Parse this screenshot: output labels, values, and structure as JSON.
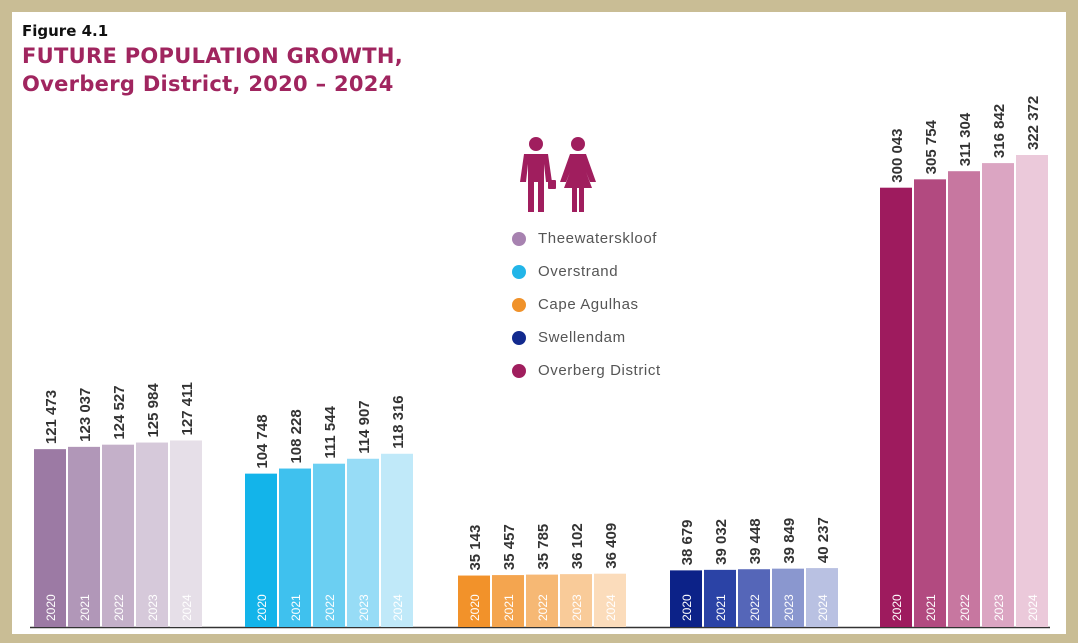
{
  "figure_label": "Figure 4.1",
  "title": "FUTURE POPULATION GROWTH,",
  "subtitle": "Overberg District, 2020 – 2024",
  "legend": [
    {
      "label": "Theewaterskloof",
      "color": "#a782b0"
    },
    {
      "label": "Overstrand",
      "color": "#22b5e8"
    },
    {
      "label": "Cape Agulhas",
      "color": "#f0922a"
    },
    {
      "label": "Swellendam",
      "color": "#122a8e"
    },
    {
      "label": "Overberg District",
      "color": "#a01e5e"
    }
  ],
  "icon": "man-and-woman-icon",
  "chart_data": {
    "type": "bar",
    "categories": [
      "2020",
      "2021",
      "2022",
      "2023",
      "2024"
    ],
    "title": "FUTURE POPULATION GROWTH,",
    "subtitle": "Overberg District, 2020 – 2024",
    "series": [
      {
        "name": "Theewaterskloof",
        "values": [
          121473,
          123037,
          124527,
          125984,
          127411
        ],
        "labels": [
          "121 473",
          "123 037",
          "124 527",
          "125 984",
          "127 411"
        ],
        "colors": [
          "#9c7aa4",
          "#b197b8",
          "#c4b0c9",
          "#d6c9da",
          "#e6dfe8"
        ]
      },
      {
        "name": "Overstrand",
        "values": [
          104748,
          108228,
          111544,
          114907,
          118316
        ],
        "labels": [
          "104 748",
          "108 228",
          "111 544",
          "114 907",
          "118 316"
        ],
        "colors": [
          "#13b4ea",
          "#3fc1ee",
          "#6bcff2",
          "#97dcf6",
          "#c0e9f9"
        ]
      },
      {
        "name": "Cape Agulhas",
        "values": [
          35143,
          35457,
          35785,
          36102,
          36409
        ],
        "labels": [
          "35 143",
          "35 457",
          "35 785",
          "36 102",
          "36 409"
        ],
        "colors": [
          "#f2922a",
          "#f4a54f",
          "#f6b874",
          "#f9cb99",
          "#fbdcbb"
        ]
      },
      {
        "name": "Swellendam",
        "values": [
          38679,
          39032,
          39448,
          39849,
          40237
        ],
        "labels": [
          "38 679",
          "39 032",
          "39 448",
          "39 849",
          "40 237"
        ],
        "colors": [
          "#0c2288",
          "#2b43a6",
          "#5566b8",
          "#8a97cf",
          "#b9c1e2"
        ]
      },
      {
        "name": "Overberg District",
        "values": [
          300043,
          305754,
          311304,
          316842,
          322372
        ],
        "labels": [
          "300 043",
          "305 754",
          "311 304",
          "316 842",
          "322 372"
        ],
        "colors": [
          "#9e1b5e",
          "#b24a80",
          "#c777a0",
          "#dba5c2",
          "#ebc9da"
        ]
      }
    ]
  }
}
